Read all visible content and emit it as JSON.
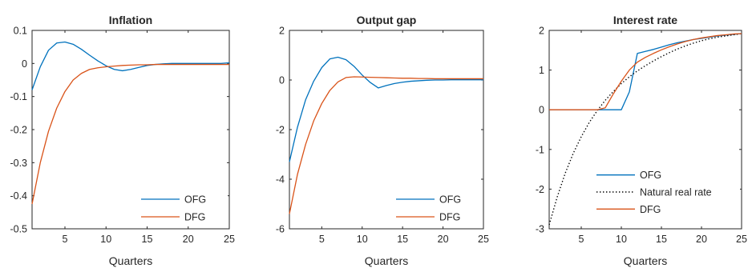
{
  "chart_data": [
    {
      "type": "line",
      "title": "Inflation",
      "xlabel": "Quarters",
      "ylabel": "",
      "xlim": [
        1,
        25
      ],
      "ylim": [
        -0.5,
        0.1
      ],
      "xticks": [
        5,
        10,
        15,
        20,
        25
      ],
      "yticks": [
        -0.5,
        -0.4,
        -0.3,
        -0.2,
        -0.1,
        0,
        0.1
      ],
      "ytick_labels": [
        "-0.5",
        "-0.4",
        "-0.3",
        "-0.2",
        "-0.1",
        "0",
        "0.1"
      ],
      "legend_position": "bottom-right",
      "series": [
        {
          "name": "OFG",
          "color": "#0072BD",
          "style": "solid",
          "x": [
            1,
            2,
            3,
            4,
            5,
            6,
            7,
            8,
            9,
            10,
            11,
            12,
            13,
            14,
            15,
            16,
            17,
            18,
            19,
            20,
            21,
            22,
            23,
            24,
            25
          ],
          "y": [
            -0.08,
            -0.01,
            0.04,
            0.062,
            0.065,
            0.058,
            0.043,
            0.025,
            0.008,
            -0.007,
            -0.018,
            -0.022,
            -0.018,
            -0.012,
            -0.006,
            -0.003,
            -0.001,
            0,
            0,
            0,
            0,
            0,
            0,
            0,
            0.002
          ]
        },
        {
          "name": "DFG",
          "color": "#D95319",
          "style": "solid",
          "x": [
            1,
            2,
            3,
            4,
            5,
            6,
            7,
            8,
            9,
            10,
            11,
            12,
            13,
            14,
            15,
            16,
            17,
            18,
            19,
            20,
            21,
            22,
            23,
            24,
            25
          ],
          "y": [
            -0.425,
            -0.3,
            -0.205,
            -0.135,
            -0.085,
            -0.05,
            -0.03,
            -0.018,
            -0.013,
            -0.01,
            -0.008,
            -0.006,
            -0.005,
            -0.004,
            -0.004,
            -0.003,
            -0.003,
            -0.003,
            -0.003,
            -0.003,
            -0.003,
            -0.003,
            -0.003,
            -0.003,
            -0.003
          ]
        }
      ]
    },
    {
      "type": "line",
      "title": "Output gap",
      "xlabel": "Quarters",
      "ylabel": "",
      "xlim": [
        1,
        25
      ],
      "ylim": [
        -6,
        2
      ],
      "xticks": [
        5,
        10,
        15,
        20,
        25
      ],
      "yticks": [
        -6,
        -4,
        -2,
        0,
        2
      ],
      "ytick_labels": [
        "-6",
        "-4",
        "-2",
        "0",
        "2"
      ],
      "legend_position": "bottom-right",
      "series": [
        {
          "name": "OFG",
          "color": "#0072BD",
          "style": "solid",
          "x": [
            1,
            2,
            3,
            4,
            5,
            6,
            7,
            8,
            9,
            10,
            11,
            12,
            13,
            14,
            15,
            16,
            17,
            18,
            19,
            20,
            21,
            22,
            23,
            24,
            25
          ],
          "y": [
            -3.3,
            -1.9,
            -0.8,
            -0.05,
            0.5,
            0.85,
            0.92,
            0.82,
            0.55,
            0.2,
            -0.1,
            -0.32,
            -0.22,
            -0.14,
            -0.09,
            -0.05,
            -0.03,
            -0.01,
            0,
            0,
            0.01,
            0.01,
            0.01,
            0.01,
            0.01
          ]
        },
        {
          "name": "DFG",
          "color": "#D95319",
          "style": "solid",
          "x": [
            1,
            2,
            3,
            4,
            5,
            6,
            7,
            8,
            9,
            10,
            11,
            12,
            13,
            14,
            15,
            16,
            17,
            18,
            19,
            20,
            21,
            22,
            23,
            24,
            25
          ],
          "y": [
            -5.4,
            -3.8,
            -2.6,
            -1.65,
            -0.95,
            -0.42,
            -0.08,
            0.1,
            0.13,
            0.12,
            0.11,
            0.1,
            0.09,
            0.08,
            0.07,
            0.07,
            0.06,
            0.06,
            0.05,
            0.05,
            0.05,
            0.05,
            0.05,
            0.05,
            0.05
          ]
        }
      ]
    },
    {
      "type": "line",
      "title": "Interest rate",
      "xlabel": "Quarters",
      "ylabel": "",
      "xlim": [
        1,
        25
      ],
      "ylim": [
        -3,
        2
      ],
      "xticks": [
        5,
        10,
        15,
        20,
        25
      ],
      "yticks": [
        -3,
        -2,
        -1,
        0,
        1,
        2
      ],
      "ytick_labels": [
        "-3",
        "-2",
        "-1",
        "0",
        "1",
        "2"
      ],
      "legend_position": "bottom-right",
      "series": [
        {
          "name": "OFG",
          "color": "#0072BD",
          "style": "solid",
          "x": [
            1,
            2,
            3,
            4,
            5,
            6,
            7,
            8,
            9,
            10,
            11,
            12,
            13,
            14,
            15,
            16,
            17,
            18,
            19,
            20,
            21,
            22,
            23,
            24,
            25
          ],
          "y": [
            0,
            0,
            0,
            0,
            0,
            0,
            0,
            0,
            0,
            0,
            0.45,
            1.42,
            1.47,
            1.52,
            1.58,
            1.64,
            1.69,
            1.73,
            1.77,
            1.8,
            1.83,
            1.86,
            1.88,
            1.9,
            1.92
          ]
        },
        {
          "name": "Natural real rate",
          "color": "#000000",
          "style": "dotted",
          "x": [
            1,
            2,
            3,
            4,
            5,
            6,
            7,
            8,
            9,
            10,
            11,
            12,
            13,
            14,
            15,
            16,
            17,
            18,
            19,
            20,
            21,
            22,
            23,
            24,
            25
          ],
          "y": [
            -2.9,
            -2.2,
            -1.6,
            -1.1,
            -0.68,
            -0.32,
            -0.02,
            0.24,
            0.46,
            0.66,
            0.83,
            0.98,
            1.11,
            1.23,
            1.34,
            1.44,
            1.53,
            1.61,
            1.68,
            1.74,
            1.79,
            1.83,
            1.86,
            1.89,
            1.92
          ]
        },
        {
          "name": "DFG",
          "color": "#D95319",
          "style": "solid",
          "x": [
            1,
            2,
            3,
            4,
            5,
            6,
            7,
            8,
            9,
            10,
            11,
            12,
            13,
            14,
            15,
            16,
            17,
            18,
            19,
            20,
            21,
            22,
            23,
            24,
            25
          ],
          "y": [
            0,
            0,
            0,
            0,
            0,
            0,
            0,
            0.05,
            0.4,
            0.72,
            1.0,
            1.2,
            1.32,
            1.42,
            1.51,
            1.59,
            1.66,
            1.72,
            1.77,
            1.81,
            1.84,
            1.87,
            1.89,
            1.91,
            1.92
          ]
        }
      ]
    }
  ]
}
